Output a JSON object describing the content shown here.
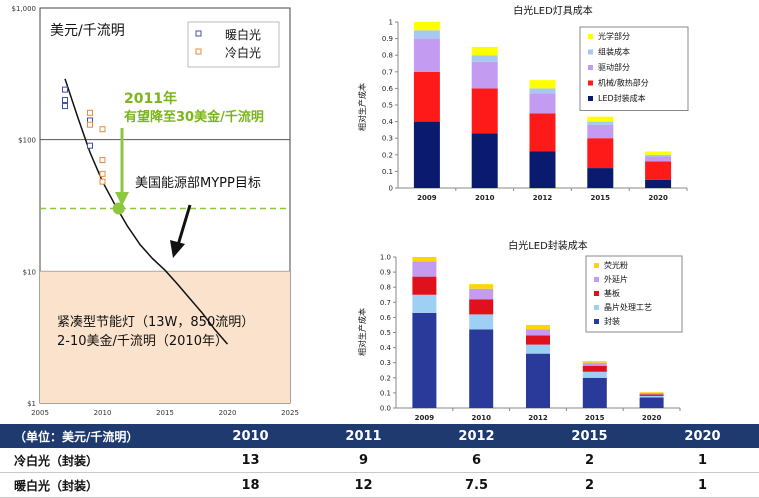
{
  "chart_data": [
    {
      "type": "line",
      "title": "美元/千流明",
      "yscale": "log",
      "ylim": [
        1,
        1000
      ],
      "xlim": [
        2005,
        2025
      ],
      "x_ticks": [
        "2005",
        "2010",
        "2015",
        "2020",
        "2025"
      ],
      "y_ticks": [
        "$1",
        "$10",
        "$100",
        "$1,000"
      ],
      "legend": {
        "position": "top-right",
        "items": [
          "暖白光",
          "冷白光"
        ]
      },
      "series": [
        {
          "name": "暖白光",
          "marker": "square",
          "color": "#3b4fb0",
          "points": [
            [
              2007,
              240
            ],
            [
              2007,
              200
            ],
            [
              2007,
              180
            ],
            [
              2009,
              140
            ],
            [
              2009,
              90
            ]
          ]
        },
        {
          "name": "冷白光",
          "marker": "square",
          "color": "#e88a3a",
          "points": [
            [
              2009,
              160
            ],
            [
              2009,
              130
            ],
            [
              2010,
              120
            ],
            [
              2010,
              70
            ],
            [
              2010,
              55
            ],
            [
              2010,
              48
            ]
          ]
        }
      ],
      "trend_line": [
        [
          2007,
          290
        ],
        [
          2008,
          150
        ],
        [
          2009,
          80
        ],
        [
          2010,
          48
        ],
        [
          2011,
          32
        ],
        [
          2012,
          22
        ],
        [
          2013,
          16
        ],
        [
          2014,
          12.5
        ],
        [
          2015,
          10.2
        ],
        [
          2016,
          8
        ],
        [
          2017,
          6.2
        ],
        [
          2018,
          4.8
        ],
        [
          2019,
          3.6
        ],
        [
          2020,
          2.8
        ]
      ],
      "target_line": {
        "value": 30,
        "label": "美国能源部MYPP目标",
        "color": "#8dc63f"
      },
      "target_point": {
        "x": 2011.3,
        "y": 30,
        "color": "#8dc63f"
      },
      "annotations": [
        {
          "text": "2011年",
          "color": "#7ab51d"
        },
        {
          "text": "有望降至30美金/千流明",
          "color": "#7ab51d"
        },
        {
          "text": "紧凑型节能灯（13W，850流明）"
        },
        {
          "text": "2-10美金/千流明（2010年）"
        }
      ],
      "shaded_band": {
        "from": 1,
        "to": 10,
        "color": "#fbe2cc"
      }
    },
    {
      "type": "bar",
      "stacked": true,
      "title": "白光LED灯具成本",
      "ylabel": "相对生产成本",
      "ylim": [
        0,
        1
      ],
      "y_ticks": [
        "0",
        "0.1",
        "0.2",
        "0.3",
        "0.4",
        "0.5",
        "0.6",
        "0.7",
        "0.8",
        "0.9",
        "1"
      ],
      "categories": [
        "2009",
        "2010",
        "2012",
        "2015",
        "2020"
      ],
      "legend": {
        "position": "top-right"
      },
      "series": [
        {
          "name": "LED封装成本",
          "color": "#0a1a6e",
          "values": [
            0.4,
            0.33,
            0.22,
            0.12,
            0.05
          ]
        },
        {
          "name": "机械/散热部分",
          "color": "#ff1a1a",
          "values": [
            0.3,
            0.27,
            0.23,
            0.18,
            0.11
          ]
        },
        {
          "name": "驱动部分",
          "color": "#c39bf0",
          "values": [
            0.2,
            0.16,
            0.12,
            0.08,
            0.03
          ]
        },
        {
          "name": "组装成本",
          "color": "#a8c8f0",
          "values": [
            0.05,
            0.04,
            0.03,
            0.02,
            0.01
          ]
        },
        {
          "name": "光学部分",
          "color": "#ffff00",
          "values": [
            0.05,
            0.05,
            0.05,
            0.03,
            0.02
          ]
        }
      ]
    },
    {
      "type": "bar",
      "stacked": true,
      "title": "白光LED封装成本",
      "ylabel": "相对生产成本",
      "ylim": [
        0,
        1
      ],
      "y_ticks": [
        "0.0",
        "0.1",
        "0.2",
        "0.3",
        "0.4",
        "0.5",
        "0.6",
        "0.7",
        "0.8",
        "0.9",
        "1.0"
      ],
      "categories": [
        "2009",
        "2010",
        "2012",
        "2015",
        "2020"
      ],
      "legend": {
        "position": "top-right"
      },
      "series": [
        {
          "name": "封装",
          "color": "#2a3a9a",
          "values": [
            0.63,
            0.52,
            0.36,
            0.2,
            0.07
          ]
        },
        {
          "name": "晶片处理工艺",
          "color": "#9ecff5",
          "values": [
            0.12,
            0.1,
            0.06,
            0.04,
            0.01
          ]
        },
        {
          "name": "基板",
          "color": "#e0101c",
          "values": [
            0.12,
            0.1,
            0.06,
            0.04,
            0.01
          ]
        },
        {
          "name": "外延片",
          "color": "#c39bf0",
          "values": [
            0.1,
            0.07,
            0.04,
            0.02,
            0.01
          ]
        },
        {
          "name": "荧光粉",
          "color": "#ffd700",
          "values": [
            0.03,
            0.03,
            0.03,
            0.01,
            0.005
          ]
        }
      ]
    }
  ],
  "table": {
    "header_label": "（单位：美元/千流明）",
    "years": [
      "2010",
      "2011",
      "2012",
      "2015",
      "2020"
    ],
    "rows": [
      {
        "label": "冷白光（封装）",
        "values": [
          "13",
          "9",
          "6",
          "2",
          "1"
        ]
      },
      {
        "label": "暖白光（封装）",
        "values": [
          "18",
          "12",
          "7.5",
          "2",
          "1"
        ]
      }
    ]
  }
}
